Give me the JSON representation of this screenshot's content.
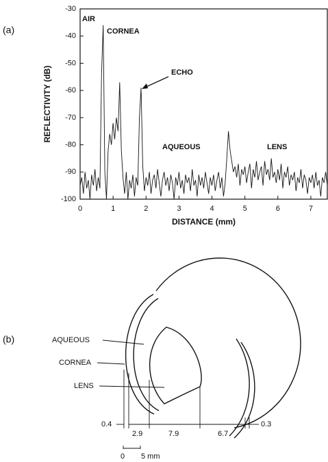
{
  "panel_labels": [
    "(a)",
    "(b)"
  ],
  "chart_data": {
    "type": "line",
    "xlabel": "DISTANCE (mm)",
    "ylabel": "REFLECTIVITY (dB)",
    "annotations": [
      "AIR",
      "CORNEA",
      "ECHO",
      "AQUEOUS",
      "LENS"
    ],
    "color": "#111111",
    "xlim": [
      0,
      7.5
    ],
    "ylim": [
      -100,
      -30
    ],
    "xticks": [
      0,
      1,
      2,
      3,
      4,
      5,
      6,
      7
    ],
    "yticks": [
      -100,
      -90,
      -80,
      -70,
      -60,
      -50,
      -40,
      -30
    ],
    "x": [
      0,
      0.05,
      0.1,
      0.15,
      0.2,
      0.25,
      0.3,
      0.35,
      0.4,
      0.45,
      0.5,
      0.55,
      0.6,
      0.65,
      0.7,
      0.75,
      0.8,
      0.85,
      0.9,
      0.95,
      1,
      1.05,
      1.1,
      1.15,
      1.2,
      1.25,
      1.3,
      1.35,
      1.4,
      1.45,
      1.5,
      1.55,
      1.6,
      1.65,
      1.7,
      1.75,
      1.8,
      1.85,
      1.9,
      1.95,
      2,
      2.05,
      2.1,
      2.15,
      2.2,
      2.25,
      2.3,
      2.35,
      2.4,
      2.45,
      2.5,
      2.55,
      2.6,
      2.65,
      2.7,
      2.75,
      2.8,
      2.85,
      2.9,
      2.95,
      3,
      3.05,
      3.1,
      3.15,
      3.2,
      3.25,
      3.3,
      3.35,
      3.4,
      3.45,
      3.5,
      3.55,
      3.6,
      3.65,
      3.7,
      3.75,
      3.8,
      3.85,
      3.9,
      3.95,
      4,
      4.05,
      4.1,
      4.15,
      4.2,
      4.25,
      4.3,
      4.35,
      4.4,
      4.45,
      4.5,
      4.55,
      4.6,
      4.65,
      4.7,
      4.75,
      4.8,
      4.85,
      4.9,
      4.95,
      5,
      5.05,
      5.1,
      5.15,
      5.2,
      5.25,
      5.3,
      5.35,
      5.4,
      5.45,
      5.5,
      5.55,
      5.6,
      5.65,
      5.7,
      5.75,
      5.8,
      5.85,
      5.9,
      5.95,
      6,
      6.05,
      6.1,
      6.15,
      6.2,
      6.25,
      6.3,
      6.35,
      6.4,
      6.45,
      6.5,
      6.55,
      6.6,
      6.65,
      6.7,
      6.75,
      6.8,
      6.85,
      6.9,
      6.95,
      7,
      7.05,
      7.1,
      7.15,
      7.2,
      7.25,
      7.3,
      7.35,
      7.4,
      7.45,
      7.5
    ],
    "values": [
      -95,
      -92,
      -98,
      -90,
      -96,
      -93,
      -100,
      -91,
      -95,
      -89,
      -97,
      -92,
      -96,
      -54,
      -36,
      -90,
      -100,
      -82,
      -76,
      -80,
      -72,
      -78,
      -70,
      -75,
      -57,
      -82,
      -92,
      -98,
      -90,
      -100,
      -93,
      -96,
      -91,
      -99,
      -92,
      -95,
      -70,
      -59,
      -88,
      -97,
      -92,
      -95,
      -90,
      -98,
      -93,
      -91,
      -96,
      -89,
      -94,
      -99,
      -93,
      -90,
      -95,
      -92,
      -97,
      -91,
      -94,
      -100,
      -92,
      -95,
      -90,
      -96,
      -93,
      -98,
      -91,
      -94,
      -92,
      -97,
      -89,
      -95,
      -93,
      -99,
      -91,
      -95,
      -92,
      -96,
      -90,
      -94,
      -98,
      -92,
      -95,
      -91,
      -97,
      -93,
      -90,
      -96,
      -92,
      -99,
      -94,
      -85,
      -75,
      -82,
      -86,
      -90,
      -88,
      -92,
      -87,
      -95,
      -89,
      -91,
      -88,
      -94,
      -90,
      -87,
      -96,
      -89,
      -92,
      -86,
      -93,
      -90,
      -88,
      -95,
      -86,
      -91,
      -89,
      -93,
      -85,
      -92,
      -90,
      -94,
      -89,
      -93,
      -87,
      -96,
      -90,
      -92,
      -88,
      -95,
      -91,
      -93,
      -90,
      -97,
      -92,
      -94,
      -89,
      -96,
      -91,
      -93,
      -98,
      -92,
      -94,
      -91,
      -96,
      -90,
      -95,
      -93,
      -99,
      -92,
      -94,
      -90,
      -95
    ]
  },
  "diagram": {
    "labels": [
      "AQUEOUS",
      "CORNEA",
      "LENS"
    ],
    "dimensions": [
      "0.4",
      "2.9",
      "7.9",
      "6.7",
      "0.3"
    ],
    "scale": [
      "0",
      "5 mm"
    ]
  }
}
